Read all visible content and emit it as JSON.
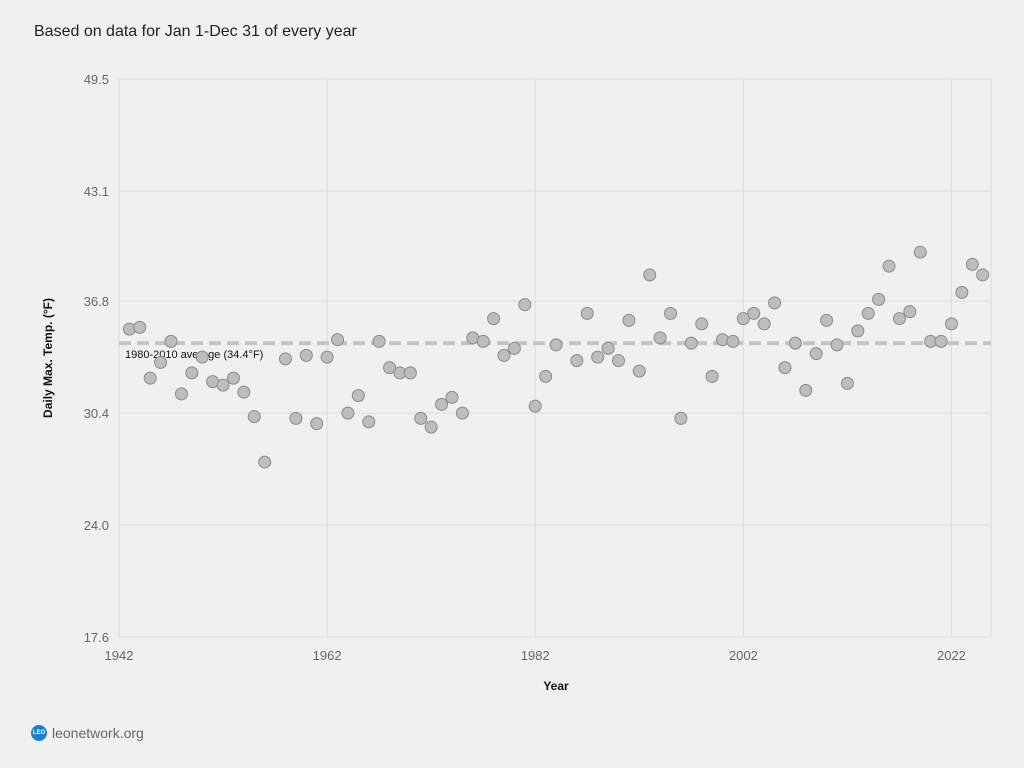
{
  "subtitle": "Based on data for Jan 1-Dec 31 of every year",
  "footer": {
    "logo_text": "LEO",
    "site": "leonetwork.org"
  },
  "chart_data": {
    "type": "scatter",
    "title": "",
    "xlabel": "Year",
    "ylabel": "Daily Max. Temp. (°F)",
    "xlim": [
      1942,
      2025.8
    ],
    "ylim": [
      17.6,
      49.5
    ],
    "xticks": [
      1942,
      1962,
      1982,
      2002,
      2022
    ],
    "yticks": [
      "17.6",
      "24.0",
      "30.4",
      "36.8",
      "43.1",
      "49.5"
    ],
    "grid": true,
    "reference_line": {
      "value": 34.4,
      "label": "1980-2010 average (34.4°F)"
    },
    "colors": {
      "point": "#bdbdbd",
      "point_stroke": "#8a8a8a",
      "reference": "#c4c4c4",
      "grid": "#dddddd"
    },
    "points": [
      [
        1943,
        35.2
      ],
      [
        1944,
        35.3
      ],
      [
        1945,
        32.4
      ],
      [
        1946,
        33.3
      ],
      [
        1947,
        34.5
      ],
      [
        1948,
        31.5
      ],
      [
        1949,
        32.7
      ],
      [
        1950,
        33.6
      ],
      [
        1951,
        32.2
      ],
      [
        1952,
        32.0
      ],
      [
        1953,
        32.4
      ],
      [
        1954,
        31.6
      ],
      [
        1955,
        30.2
      ],
      [
        1956,
        27.6
      ],
      [
        1958,
        33.5
      ],
      [
        1959,
        30.1
      ],
      [
        1960,
        33.7
      ],
      [
        1961,
        29.8
      ],
      [
        1962,
        33.6
      ],
      [
        1963,
        34.6
      ],
      [
        1964,
        30.4
      ],
      [
        1965,
        31.4
      ],
      [
        1966,
        29.9
      ],
      [
        1967,
        34.5
      ],
      [
        1968,
        33.0
      ],
      [
        1969,
        32.7
      ],
      [
        1970,
        32.7
      ],
      [
        1971,
        30.1
      ],
      [
        1972,
        29.6
      ],
      [
        1973,
        30.9
      ],
      [
        1974,
        31.3
      ],
      [
        1975,
        30.4
      ],
      [
        1976,
        34.7
      ],
      [
        1977,
        34.5
      ],
      [
        1978,
        35.8
      ],
      [
        1979,
        33.7
      ],
      [
        1980,
        34.1
      ],
      [
        1981,
        36.6
      ],
      [
        1982,
        30.8
      ],
      [
        1983,
        32.5
      ],
      [
        1984,
        34.3
      ],
      [
        1986,
        33.4
      ],
      [
        1987,
        36.1
      ],
      [
        1988,
        33.6
      ],
      [
        1989,
        34.1
      ],
      [
        1990,
        33.4
      ],
      [
        1991,
        35.7
      ],
      [
        1992,
        32.8
      ],
      [
        1993,
        38.3
      ],
      [
        1994,
        34.7
      ],
      [
        1995,
        36.1
      ],
      [
        1996,
        30.1
      ],
      [
        1997,
        34.4
      ],
      [
        1998,
        35.5
      ],
      [
        1999,
        32.5
      ],
      [
        2000,
        34.6
      ],
      [
        2001,
        34.5
      ],
      [
        2002,
        35.8
      ],
      [
        2003,
        36.1
      ],
      [
        2004,
        35.5
      ],
      [
        2005,
        36.7
      ],
      [
        2006,
        33.0
      ],
      [
        2007,
        34.4
      ],
      [
        2008,
        31.7
      ],
      [
        2009,
        33.8
      ],
      [
        2010,
        35.7
      ],
      [
        2011,
        34.3
      ],
      [
        2012,
        32.1
      ],
      [
        2013,
        35.1
      ],
      [
        2014,
        36.1
      ],
      [
        2015,
        36.9
      ],
      [
        2016,
        38.8
      ],
      [
        2017,
        35.8
      ],
      [
        2018,
        36.2
      ],
      [
        2019,
        39.6
      ],
      [
        2020,
        34.5
      ],
      [
        2021,
        34.5
      ],
      [
        2022,
        35.5
      ],
      [
        2023,
        37.3
      ],
      [
        2024,
        38.9
      ],
      [
        2025,
        38.3
      ]
    ]
  }
}
